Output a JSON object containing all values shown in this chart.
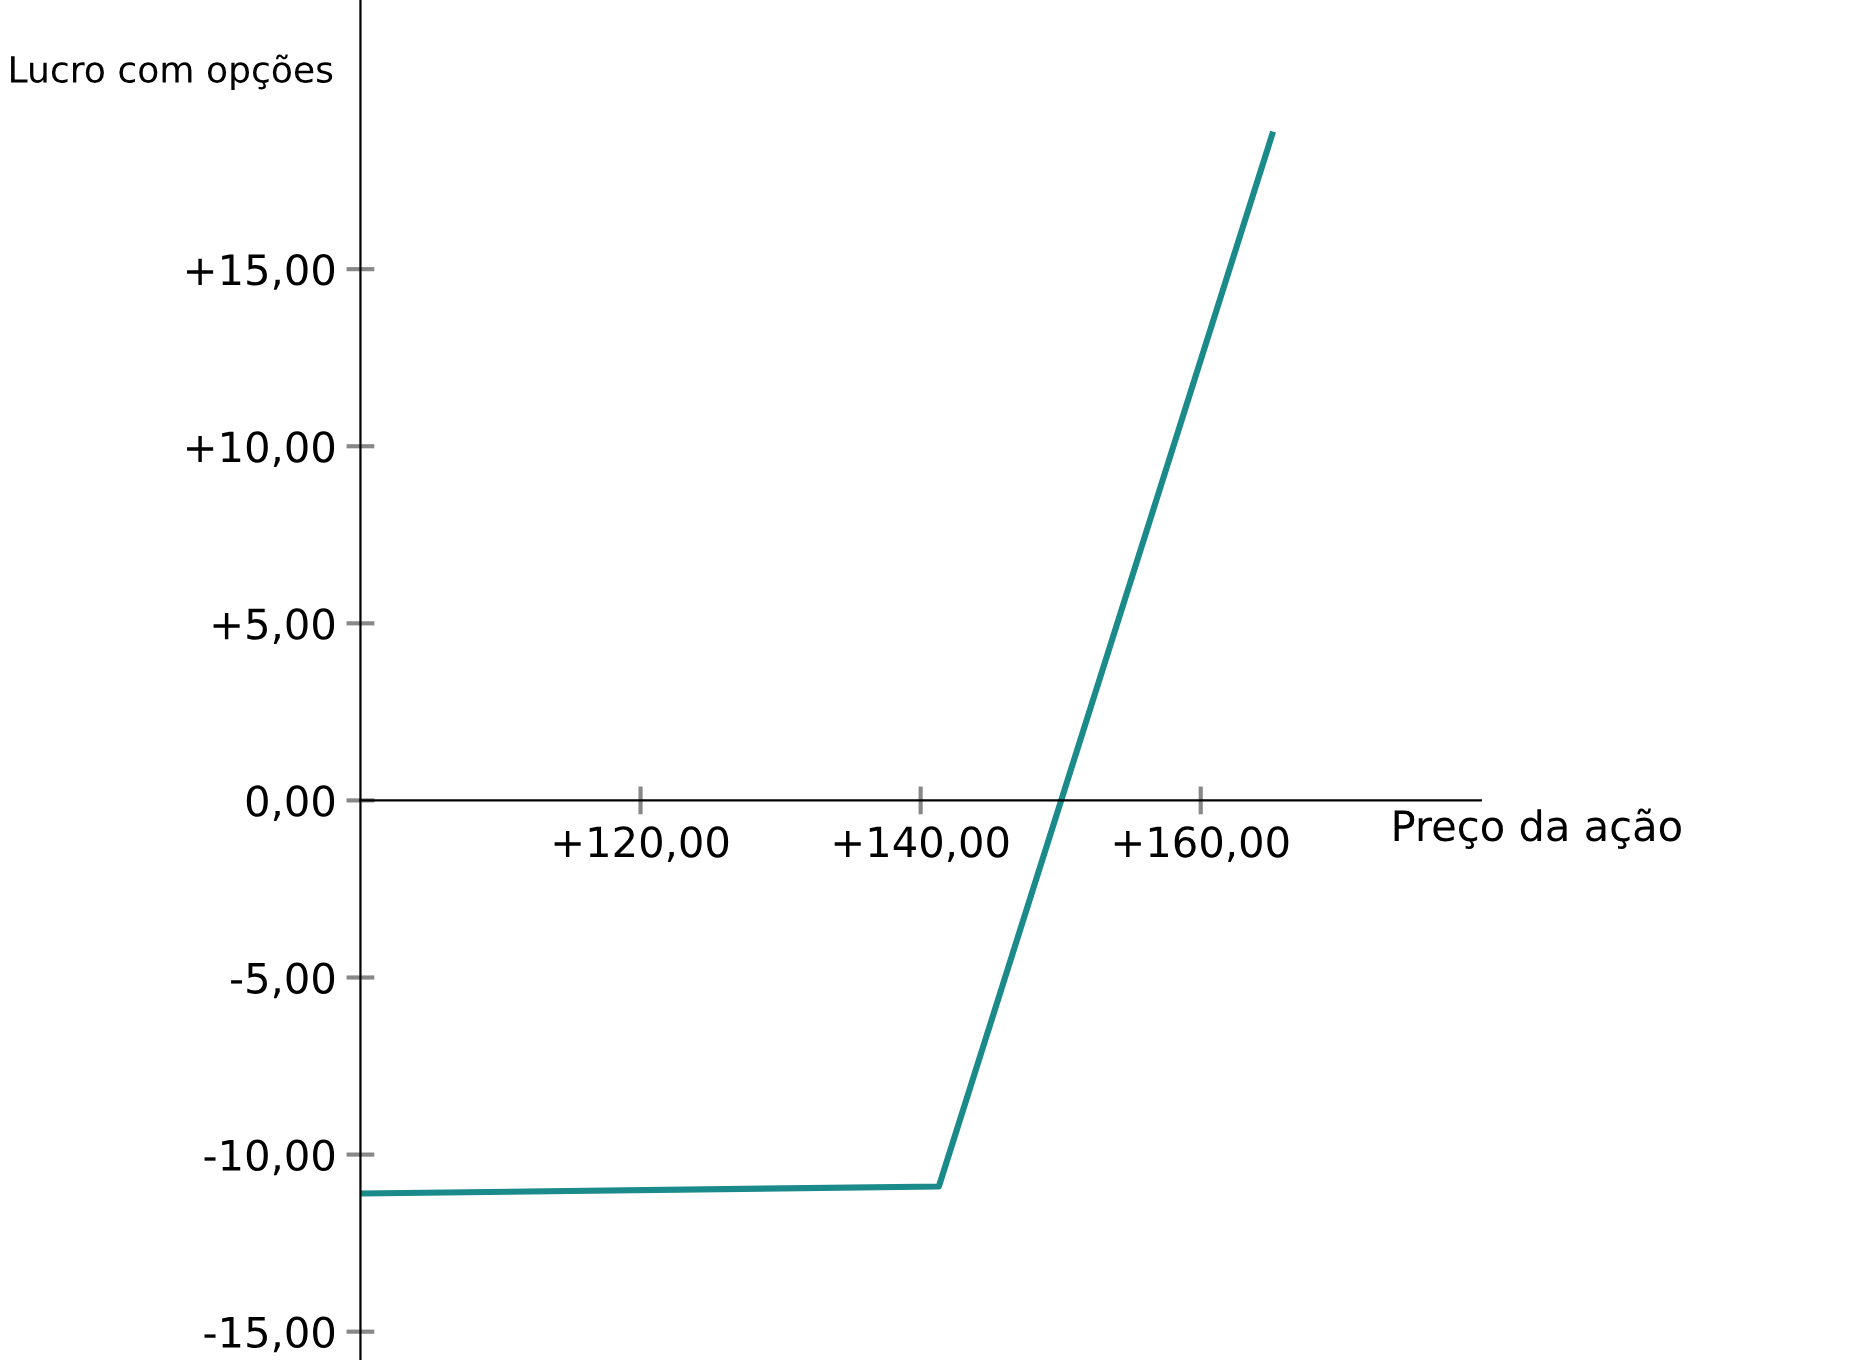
{
  "chart_data": {
    "type": "line",
    "xlabel": "Preço da ação",
    "ylabel": "Lucro com opções",
    "x": [
      100,
      141.3,
      165.1
    ],
    "series": [
      {
        "color": "#1a8a8a",
        "values": [
          -11.1,
          -10.9,
          18.8
        ]
      }
    ],
    "xlim": [
      100,
      180
    ],
    "ylim": [
      -15.8,
      22.6
    ],
    "xticks": [
      {
        "value": 120,
        "label": "+120,00"
      },
      {
        "value": 140,
        "label": "+140,00"
      },
      {
        "value": 160,
        "label": "+160,00"
      }
    ],
    "yticks": [
      {
        "value": -15,
        "label": "-15,00"
      },
      {
        "value": -10,
        "label": "-10,00"
      },
      {
        "value": -5,
        "label": "-5,00"
      },
      {
        "value": 0,
        "label": "0,00"
      },
      {
        "value": 5,
        "label": "+5,00"
      },
      {
        "value": 10,
        "label": "+10,00"
      },
      {
        "value": 15,
        "label": "+15,00"
      }
    ],
    "grid": false,
    "legend": false,
    "marker": "none",
    "line_style": "solid"
  }
}
